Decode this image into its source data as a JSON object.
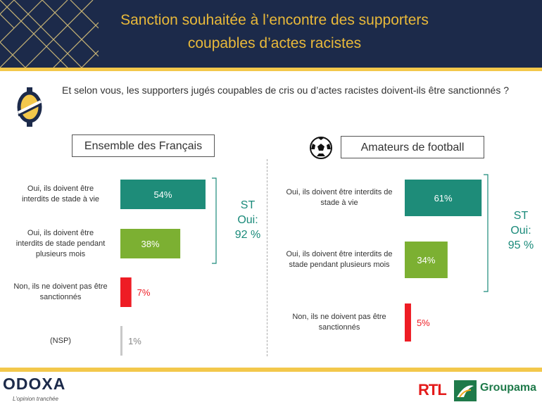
{
  "header": {
    "title_line1": "Sanction souhaitée à l’encontre des supporters",
    "title_line2": "coupables d’actes racistes"
  },
  "question": "Et selon vous, les supporters jugés coupables de cris ou d’actes racistes doivent-ils être sanctionnés ?",
  "chart_data": [
    {
      "type": "bar",
      "title": "Ensemble des Français",
      "categories": [
        "Oui, ils doivent être interdits de stade à vie",
        "Oui, ils doivent être interdits de stade pendant plusieurs mois",
        "Non, ils ne doivent pas être sanctionnés",
        "(NSP)"
      ],
      "labels": [
        [
          "Oui, ils doivent être",
          "interdits de stade à vie"
        ],
        [
          "Oui, ils doivent être",
          "interdits de stade pendant",
          "plusieurs mois"
        ],
        [
          "Non, ils ne doivent pas être",
          "sanctionnés"
        ],
        [
          "(NSP)"
        ]
      ],
      "values": [
        54,
        38,
        7,
        1
      ],
      "value_labels": [
        "54%",
        "38%",
        "7%",
        "1%"
      ],
      "colors": [
        "#1e8c79",
        "#7cb032",
        "#ee1c24",
        "#c8c8c8"
      ],
      "subtotal": {
        "line1": "ST",
        "line2": "Oui:",
        "line3": "92 %",
        "value": 92
      }
    },
    {
      "type": "bar",
      "title": "Amateurs de football",
      "categories": [
        "Oui, ils doivent être interdits de stade à vie",
        "Oui, ils doivent être interdits de stade pendant plusieurs mois",
        "Non, ils ne doivent pas être sanctionnés"
      ],
      "labels": [
        [
          "Oui, ils doivent être interdits de",
          "stade à vie"
        ],
        [
          "Oui, ils doivent être interdits de",
          "stade pendant plusieurs mois"
        ],
        [
          "Non, ils ne doivent pas être",
          "sanctionnés"
        ]
      ],
      "values": [
        61,
        34,
        5
      ],
      "value_labels": [
        "61%",
        "34%",
        "5%"
      ],
      "colors": [
        "#1e8c79",
        "#7cb032",
        "#ee1c24"
      ],
      "subtotal": {
        "line1": "ST",
        "line2": "Oui:",
        "line3": "95 %",
        "value": 95
      }
    }
  ],
  "footer": {
    "brand": "ODOXA",
    "tagline": "L’opinion tranchée",
    "partner1": "RTL",
    "partner2": "Groupama"
  }
}
